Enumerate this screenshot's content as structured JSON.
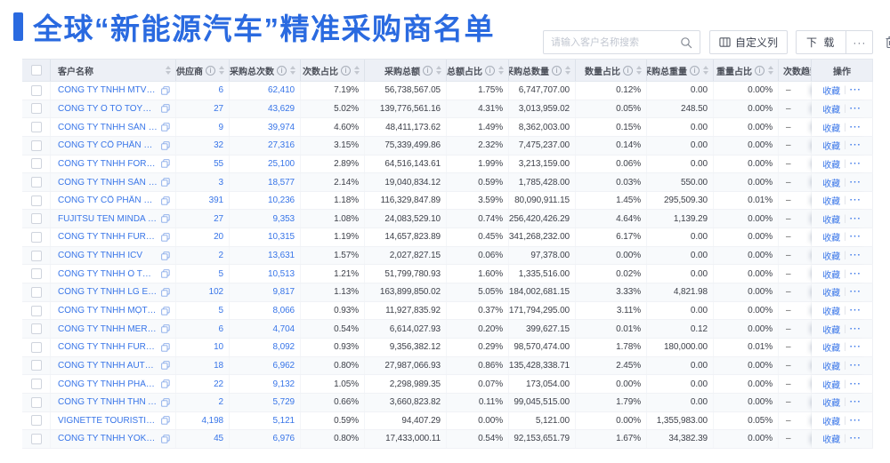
{
  "page": {
    "title": "全球“新能源汽车”精准采购商名单"
  },
  "toolbar": {
    "search_placeholder": "请输入客户名称搜索",
    "customize_columns_label": "自定义列",
    "download_label": "下 载",
    "more_label": "···"
  },
  "colors": {
    "accent": "#2a6ae0",
    "link": "#3875e8",
    "header_bg": "#edf0f6"
  },
  "table": {
    "columns": [
      {
        "key": "customer-name",
        "label": "客户名称",
        "info": false,
        "sort": true
      },
      {
        "key": "supplier",
        "label": "供应商",
        "info": true,
        "sort": true
      },
      {
        "key": "purchase-count",
        "label": "采购总次数",
        "info": true,
        "sort": true
      },
      {
        "key": "count-pct",
        "label": "次数占比",
        "info": true,
        "sort": true
      },
      {
        "key": "purchase-amount",
        "label": "采购总额",
        "info": true,
        "sort": true
      },
      {
        "key": "amount-pct",
        "label": "总额占比",
        "info": true,
        "sort": true
      },
      {
        "key": "purchase-qty",
        "label": "采购总数量",
        "info": true,
        "sort": true
      },
      {
        "key": "qty-pct",
        "label": "数量占比",
        "info": true,
        "sort": true
      },
      {
        "key": "purchase-weight",
        "label": "采购总重量",
        "info": true,
        "sort": true
      },
      {
        "key": "weight-pct",
        "label": "重量占比",
        "info": true,
        "sort": true
      },
      {
        "key": "trend",
        "label": "次数趋势",
        "info": false,
        "sort": false
      },
      {
        "key": "actions",
        "label": "操作",
        "info": false,
        "sort": false
      }
    ],
    "row_actions": {
      "favorite": "收藏",
      "more": "···"
    },
    "rows": [
      {
        "name": "CÔNG TY TNHH MTV SẢN XUẤ...",
        "supplier": "6",
        "purchase_count": "62,410",
        "count_pct": "7.19%",
        "purchase_amount": "56,738,567.05",
        "amount_pct": "1.75%",
        "purchase_qty": "6,747,707.00",
        "qty_pct": "0.12%",
        "purchase_weight": "0.00",
        "weight_pct": "0.00%",
        "trend": "–"
      },
      {
        "name": "CÔNG TY Ô TÔ TOYOTA VIỆT ...",
        "supplier": "27",
        "purchase_count": "43,629",
        "count_pct": "5.02%",
        "purchase_amount": "139,776,561.16",
        "amount_pct": "4.31%",
        "purchase_qty": "3,013,959.02",
        "qty_pct": "0.05%",
        "purchase_weight": "248.50",
        "weight_pct": "0.00%",
        "trend": "–"
      },
      {
        "name": "CÔNG TY TNHH SẢN XUẤT VÀ ...",
        "supplier": "9",
        "purchase_count": "39,974",
        "count_pct": "4.60%",
        "purchase_amount": "48,411,173.62",
        "amount_pct": "1.49%",
        "purchase_qty": "8,362,003.00",
        "qty_pct": "0.15%",
        "purchase_weight": "0.00",
        "weight_pct": "0.00%",
        "trend": "–"
      },
      {
        "name": "CÔNG TY CỔ PHẦN SẢN XUẤT...",
        "supplier": "32",
        "purchase_count": "27,316",
        "count_pct": "3.15%",
        "purchase_amount": "75,339,499.86",
        "amount_pct": "2.32%",
        "purchase_qty": "7,475,237.00",
        "qty_pct": "0.14%",
        "purchase_weight": "0.00",
        "weight_pct": "0.00%",
        "trend": "–"
      },
      {
        "name": "CÔNG TY TNHH FORD VIỆT NAM",
        "supplier": "55",
        "purchase_count": "25,100",
        "count_pct": "2.89%",
        "purchase_amount": "64,516,143.61",
        "amount_pct": "1.99%",
        "purchase_qty": "3,213,159.00",
        "qty_pct": "0.06%",
        "purchase_weight": "0.00",
        "weight_pct": "0.00%",
        "trend": "–"
      },
      {
        "name": "CÔNG TY TNHH SẢN XUẤT VÀ ...",
        "supplier": "3",
        "purchase_count": "18,577",
        "count_pct": "2.14%",
        "purchase_amount": "19,040,834.12",
        "amount_pct": "0.59%",
        "purchase_qty": "1,785,428.00",
        "qty_pct": "0.03%",
        "purchase_weight": "550.00",
        "weight_pct": "0.00%",
        "trend": "–"
      },
      {
        "name": "CÔNG TY CỔ PHẦN SẢN XUẤT...",
        "supplier": "391",
        "purchase_count": "10,236",
        "count_pct": "1.18%",
        "purchase_amount": "116,329,847.89",
        "amount_pct": "3.59%",
        "purchase_qty": "80,090,911.15",
        "qty_pct": "1.45%",
        "purchase_weight": "295,509.30",
        "weight_pct": "0.01%",
        "trend": "–"
      },
      {
        "name": "FUJITSU TEN MINDA INDIA PVT...",
        "supplier": "27",
        "purchase_count": "9,353",
        "count_pct": "1.08%",
        "purchase_amount": "24,083,529.10",
        "amount_pct": "0.74%",
        "purchase_qty": "256,420,426.29",
        "qty_pct": "4.64%",
        "purchase_weight": "1,139.29",
        "weight_pct": "0.00%",
        "trend": "–"
      },
      {
        "name": "CÔNG TY TNHH FURUKAWA A...",
        "supplier": "20",
        "purchase_count": "10,315",
        "count_pct": "1.19%",
        "purchase_amount": "14,657,823.89",
        "amount_pct": "0.45%",
        "purchase_qty": "341,268,232.00",
        "qty_pct": "6.17%",
        "purchase_weight": "0.00",
        "weight_pct": "0.00%",
        "trend": "–"
      },
      {
        "name": "CÔNG TY TNHH ICV",
        "supplier": "2",
        "purchase_count": "13,631",
        "count_pct": "1.57%",
        "purchase_amount": "2,027,827.15",
        "amount_pct": "0.06%",
        "purchase_qty": "97,378.00",
        "qty_pct": "0.00%",
        "purchase_weight": "0.00",
        "weight_pct": "0.00%",
        "trend": "–"
      },
      {
        "name": "CÔNG TY TNHH Ô TÔ MITSUBI...",
        "supplier": "5",
        "purchase_count": "10,513",
        "count_pct": "1.21%",
        "purchase_amount": "51,799,780.93",
        "amount_pct": "1.60%",
        "purchase_qty": "1,335,516.00",
        "qty_pct": "0.02%",
        "purchase_weight": "0.00",
        "weight_pct": "0.00%",
        "trend": "–"
      },
      {
        "name": "CÔNG TY TNHH LG ELECTRON...",
        "supplier": "102",
        "purchase_count": "9,817",
        "count_pct": "1.13%",
        "purchase_amount": "163,899,850.02",
        "amount_pct": "5.05%",
        "purchase_qty": "184,002,681.15",
        "qty_pct": "3.33%",
        "purchase_weight": "4,821.98",
        "weight_pct": "0.00%",
        "trend": "–"
      },
      {
        "name": "CÔNG TY TNHH MỘT THÀNH V...",
        "supplier": "5",
        "purchase_count": "8,066",
        "count_pct": "0.93%",
        "purchase_amount": "11,927,835.92",
        "amount_pct": "0.37%",
        "purchase_qty": "171,794,295.00",
        "qty_pct": "3.11%",
        "purchase_weight": "0.00",
        "weight_pct": "0.00%",
        "trend": "–"
      },
      {
        "name": "CÔNG TY TNHH MERCEDES–B...",
        "supplier": "6",
        "purchase_count": "4,704",
        "count_pct": "0.54%",
        "purchase_amount": "6,614,027.93",
        "amount_pct": "0.20%",
        "purchase_qty": "399,627.15",
        "qty_pct": "0.01%",
        "purchase_weight": "0.12",
        "weight_pct": "0.00%",
        "trend": "–"
      },
      {
        "name": "CÔNG TY TNHH FURUKAWA A...",
        "supplier": "10",
        "purchase_count": "8,092",
        "count_pct": "0.93%",
        "purchase_amount": "9,356,382.12",
        "amount_pct": "0.29%",
        "purchase_qty": "98,570,474.00",
        "qty_pct": "1.78%",
        "purchase_weight": "180,000.00",
        "weight_pct": "0.01%",
        "trend": "–"
      },
      {
        "name": "CÔNG TY TNHH AUTEL VIỆT N...",
        "supplier": "18",
        "purchase_count": "6,962",
        "count_pct": "0.80%",
        "purchase_amount": "27,987,066.93",
        "amount_pct": "0.86%",
        "purchase_qty": "135,428,338.71",
        "qty_pct": "2.45%",
        "purchase_weight": "0.00",
        "weight_pct": "0.00%",
        "trend": "–"
      },
      {
        "name": "CÔNG TY TNHH PHÂN PHỐI T...",
        "supplier": "22",
        "purchase_count": "9,132",
        "count_pct": "1.05%",
        "purchase_amount": "2,298,989.35",
        "amount_pct": "0.07%",
        "purchase_qty": "173,054.00",
        "qty_pct": "0.00%",
        "purchase_weight": "0.00",
        "weight_pct": "0.00%",
        "trend": "–"
      },
      {
        "name": "CÔNG TY TNHH THN AUTOPAR...",
        "supplier": "2",
        "purchase_count": "5,729",
        "count_pct": "0.66%",
        "purchase_amount": "3,660,823.82",
        "amount_pct": "0.11%",
        "purchase_qty": "99,045,515.00",
        "qty_pct": "1.79%",
        "purchase_weight": "0.00",
        "weight_pct": "0.00%",
        "trend": "–"
      },
      {
        "name": "VIGNETTE TOURISTIQUE G UNI...",
        "supplier": "4,198",
        "purchase_count": "5,121",
        "count_pct": "0.59%",
        "purchase_amount": "94,407.29",
        "amount_pct": "0.00%",
        "purchase_qty": "5,121.00",
        "qty_pct": "0.00%",
        "purchase_weight": "1,355,983.00",
        "weight_pct": "0.05%",
        "trend": "–"
      },
      {
        "name": "CÔNG TY TNHH YOKOWO VIỆT...",
        "supplier": "45",
        "purchase_count": "6,976",
        "count_pct": "0.80%",
        "purchase_amount": "17,433,000.11",
        "amount_pct": "0.54%",
        "purchase_qty": "92,153,651.79",
        "qty_pct": "1.67%",
        "purchase_weight": "34,382.39",
        "weight_pct": "0.00%",
        "trend": "–"
      }
    ]
  }
}
